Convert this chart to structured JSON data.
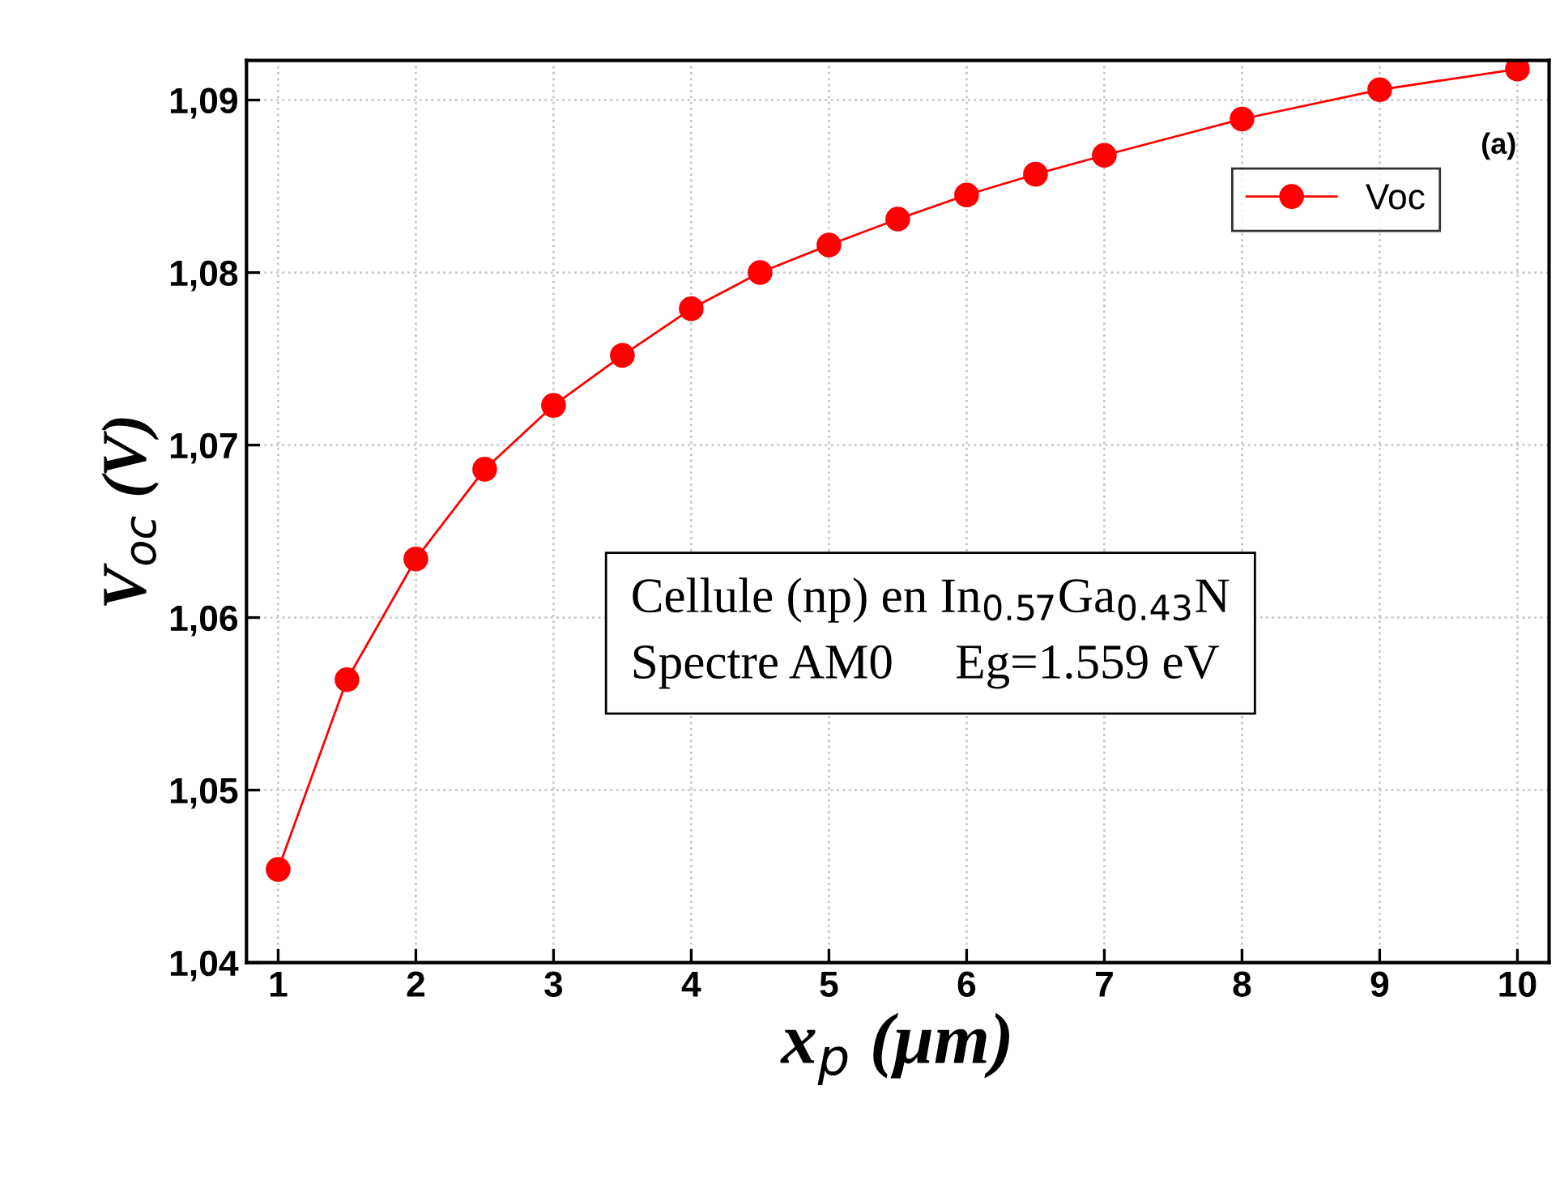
{
  "chart_data": {
    "type": "line",
    "xlabel": "x$_{p}$ (μm)",
    "ylabel": "V$_{oc}$ (V)",
    "x": [
      1,
      1.5,
      2,
      2.5,
      3,
      3.5,
      4,
      4.5,
      5,
      5.5,
      6,
      6.5,
      7,
      8,
      9,
      10
    ],
    "series": [
      {
        "name": "Voc",
        "color": "#ff0000",
        "values": [
          1.0454,
          1.0564,
          1.0634,
          1.0686,
          1.0723,
          1.0752,
          1.0779,
          1.08,
          1.0816,
          1.0831,
          1.0845,
          1.0857,
          1.0868,
          1.0889,
          1.0906,
          1.0918
        ]
      }
    ],
    "xlim": [
      0.77,
      10.23
    ],
    "xticks": [
      1,
      2,
      3,
      4,
      5,
      6,
      7,
      8,
      9,
      10
    ],
    "ylim": [
      1.04,
      1.0923
    ],
    "yticks": [
      {
        "value": 1.04,
        "label": "1,04"
      },
      {
        "value": 1.05,
        "label": "1,05"
      },
      {
        "value": 1.06,
        "label": "1,06"
      },
      {
        "value": 1.07,
        "label": "1,07"
      },
      {
        "value": 1.08,
        "label": "1,08"
      },
      {
        "value": 1.09,
        "label": "1,09"
      }
    ],
    "annotations": [
      "(a)",
      "Cellule (np) en In$_{0.57}$Ga$_{0.43}$N\nSpectre AM0     Eg=1.559 eV"
    ],
    "grid": true,
    "legend": "top right",
    "marker": "circle",
    "line_style": "solid"
  }
}
